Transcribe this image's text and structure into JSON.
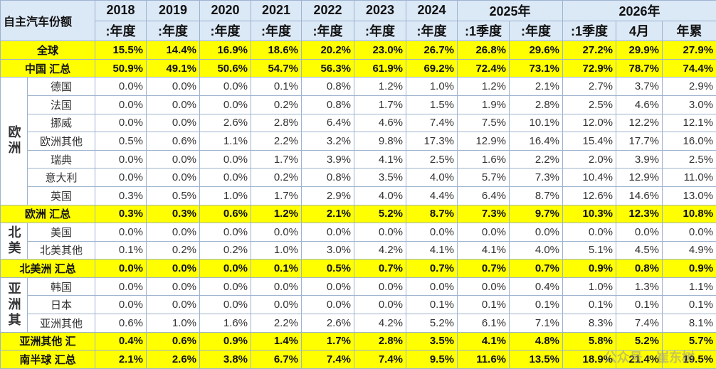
{
  "table": {
    "corner": "自主汽车份额",
    "years": [
      "2018",
      "2019",
      "2020",
      "2021",
      "2022",
      "2023",
      "2024",
      "2025年",
      "2026年"
    ],
    "periods": [
      ":年度",
      ":年度",
      ":年度",
      ":年度",
      ":年度",
      ":年度",
      ":年度",
      ":1季度",
      ":年度",
      ":1季度",
      "4月",
      "年累"
    ],
    "sections": [
      {
        "name": "全球",
        "values": [
          "15.5%",
          "14.4%",
          "16.9%",
          "18.6%",
          "20.2%",
          "23.0%",
          "26.7%",
          "26.8%",
          "29.6%",
          "27.2%",
          "29.9%",
          "27.9%"
        ]
      },
      {
        "name": "中国 汇总",
        "values": [
          "50.9%",
          "49.1%",
          "50.6%",
          "54.7%",
          "56.3%",
          "61.9%",
          "69.2%",
          "72.4%",
          "73.1%",
          "72.9%",
          "78.7%",
          "74.4%"
        ]
      },
      {
        "group": "欧洲",
        "rows": [
          {
            "name": "德国",
            "values": [
              "0.0%",
              "0.0%",
              "0.0%",
              "0.1%",
              "0.8%",
              "1.2%",
              "1.0%",
              "1.2%",
              "2.1%",
              "2.7%",
              "3.7%",
              "2.9%"
            ]
          },
          {
            "name": "法国",
            "values": [
              "0.0%",
              "0.0%",
              "0.0%",
              "0.2%",
              "0.8%",
              "1.7%",
              "1.5%",
              "1.9%",
              "2.8%",
              "2.5%",
              "4.6%",
              "3.0%"
            ]
          },
          {
            "name": "挪威",
            "values": [
              "0.0%",
              "0.0%",
              "2.6%",
              "2.8%",
              "6.4%",
              "4.6%",
              "7.4%",
              "7.5%",
              "10.1%",
              "12.0%",
              "12.2%",
              "12.1%"
            ]
          },
          {
            "name": "欧洲其他",
            "values": [
              "0.5%",
              "0.6%",
              "1.1%",
              "2.2%",
              "3.2%",
              "9.8%",
              "17.3%",
              "12.9%",
              "16.4%",
              "15.4%",
              "17.7%",
              "16.0%"
            ]
          },
          {
            "name": "瑞典",
            "values": [
              "0.0%",
              "0.0%",
              "0.0%",
              "1.7%",
              "3.9%",
              "4.1%",
              "2.5%",
              "1.6%",
              "2.2%",
              "2.0%",
              "3.9%",
              "2.5%"
            ]
          },
          {
            "name": "意大利",
            "values": [
              "0.0%",
              "0.0%",
              "0.0%",
              "0.2%",
              "0.8%",
              "3.5%",
              "4.0%",
              "5.7%",
              "7.3%",
              "10.4%",
              "12.9%",
              "11.0%"
            ]
          },
          {
            "name": "英国",
            "values": [
              "0.3%",
              "0.5%",
              "1.0%",
              "1.7%",
              "2.9%",
              "4.0%",
              "4.4%",
              "6.4%",
              "8.7%",
              "12.6%",
              "14.6%",
              "13.0%"
            ]
          }
        ]
      },
      {
        "name": "欧洲 汇总",
        "values": [
          "0.3%",
          "0.3%",
          "0.6%",
          "1.2%",
          "2.1%",
          "5.2%",
          "8.7%",
          "7.3%",
          "9.7%",
          "10.3%",
          "12.3%",
          "10.8%"
        ]
      },
      {
        "group": "北美",
        "rows": [
          {
            "name": "美国",
            "values": [
              "0.0%",
              "0.0%",
              "0.0%",
              "0.0%",
              "0.0%",
              "0.0%",
              "0.0%",
              "0.0%",
              "0.0%",
              "0.0%",
              "0.0%",
              "0.0%"
            ]
          },
          {
            "name": "北美其他",
            "values": [
              "0.1%",
              "0.2%",
              "0.2%",
              "1.0%",
              "3.0%",
              "4.2%",
              "4.1%",
              "4.1%",
              "4.0%",
              "5.1%",
              "4.5%",
              "4.9%"
            ]
          }
        ]
      },
      {
        "name": "北美洲 汇总",
        "values": [
          "0.0%",
          "0.0%",
          "0.0%",
          "0.1%",
          "0.5%",
          "0.7%",
          "0.7%",
          "0.7%",
          "0.7%",
          "0.9%",
          "0.8%",
          "0.9%"
        ]
      },
      {
        "group": "亚洲其",
        "rows": [
          {
            "name": "韩国",
            "values": [
              "0.0%",
              "0.0%",
              "0.0%",
              "0.0%",
              "0.0%",
              "0.0%",
              "0.0%",
              "0.0%",
              "0.4%",
              "1.0%",
              "1.3%",
              "1.1%"
            ]
          },
          {
            "name": "日本",
            "values": [
              "0.0%",
              "0.0%",
              "0.0%",
              "0.0%",
              "0.0%",
              "0.0%",
              "0.1%",
              "0.1%",
              "0.1%",
              "0.1%",
              "0.1%",
              "0.1%"
            ]
          },
          {
            "name": "亚洲其他",
            "values": [
              "0.6%",
              "1.0%",
              "1.6%",
              "2.2%",
              "2.6%",
              "4.2%",
              "5.2%",
              "6.1%",
              "7.1%",
              "8.3%",
              "7.4%",
              "8.1%"
            ]
          }
        ]
      },
      {
        "name": "亚洲其他 汇",
        "values": [
          "0.4%",
          "0.6%",
          "0.9%",
          "1.4%",
          "1.7%",
          "2.8%",
          "3.5%",
          "4.1%",
          "4.8%",
          "5.8%",
          "5.2%",
          "5.7%"
        ]
      },
      {
        "name": "南半球 汇总",
        "values": [
          "2.1%",
          "2.6%",
          "3.8%",
          "6.7%",
          "7.4%",
          "7.4%",
          "9.5%",
          "11.6%",
          "13.5%",
          "18.9%",
          "21.4%",
          "19.5%"
        ]
      }
    ],
    "watermark": "公众号 · 崔东树"
  }
}
